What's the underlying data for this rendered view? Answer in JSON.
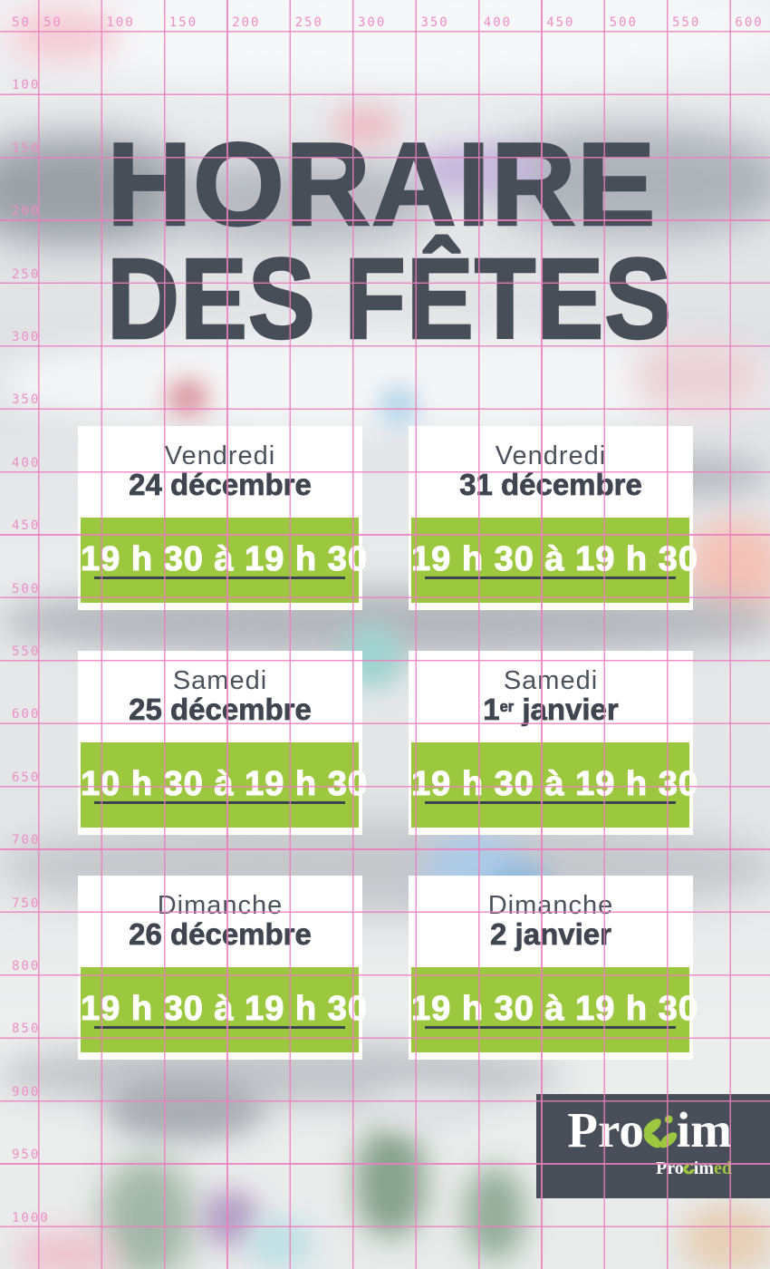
{
  "poster": {
    "title_line1": "HORAIRE",
    "title_line2": "DES FÊTES"
  },
  "ruler": {
    "top_labels": [
      "50",
      "100",
      "150",
      "200",
      "250",
      "300",
      "350",
      "400",
      "450",
      "500",
      "550",
      "600"
    ],
    "left_labels": [
      "50",
      "100",
      "150",
      "200",
      "250",
      "300",
      "350",
      "400",
      "450",
      "500",
      "550",
      "600",
      "650",
      "700",
      "750",
      "800",
      "850",
      "900",
      "950",
      "1000"
    ]
  },
  "schedule": {
    "cards": [
      {
        "day": "Vendredi",
        "date": "24 décembre",
        "time": "19 h 30 à 19 h 30"
      },
      {
        "day": "Vendredi",
        "date": "31 décembre",
        "time": "19 h 30 à 19 h 30"
      },
      {
        "day": "Samedi",
        "date": "25 décembre",
        "time": "10 h 30 à 19 h 30"
      },
      {
        "day": "Samedi",
        "date_num": "1",
        "date_sup": "er",
        "date_rest": " janvier",
        "time": "19 h 30 à 19 h 30"
      },
      {
        "day": "Dimanche",
        "date": "26 décembre",
        "time": "19 h 30 à 19 h 30"
      },
      {
        "day": "Dimanche",
        "date": "2 janvier",
        "time": "19 h 30 à 19 h 30"
      }
    ]
  },
  "logo": {
    "brand_part1": "Pro",
    "brand_part2": "im",
    "sub_part1": "Pro",
    "sub_part2": "im",
    "sub_part3": "ed"
  },
  "colors": {
    "accent_green": "#9cc83f",
    "title_slate": "#474e58",
    "grid_pink": "#ec7ebe",
    "time_text": "#ffffff",
    "time_underline": "#3d444e"
  }
}
